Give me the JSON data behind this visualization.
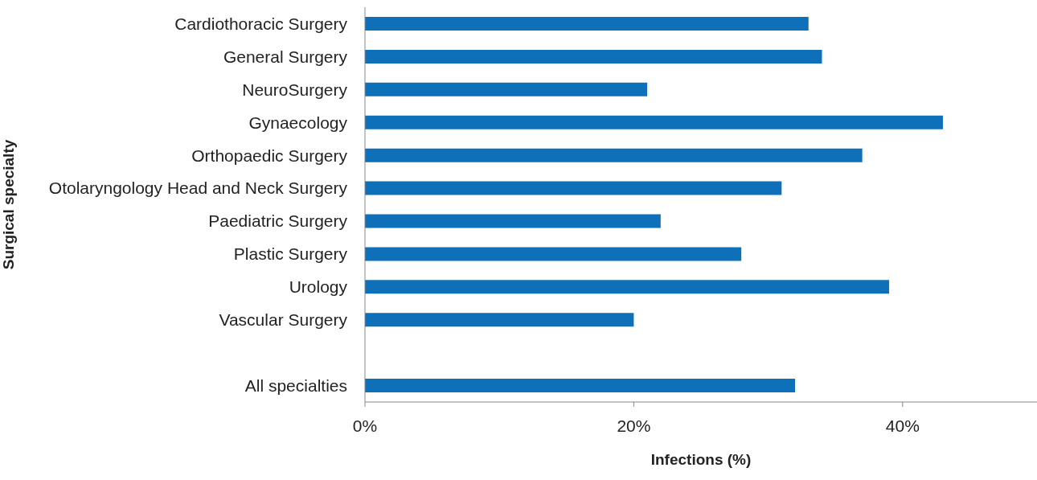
{
  "chart_data": {
    "type": "bar",
    "orientation": "horizontal",
    "xlabel": "Infections (%)",
    "ylabel": "Surgical specialty",
    "categories": [
      "Cardiothoracic Surgery",
      "General Surgery",
      "NeuroSurgery",
      "Gynaecology",
      "Orthopaedic Surgery",
      "Otolaryngology Head and Neck Surgery",
      "Paediatric Surgery",
      "Plastic Surgery",
      "Urology",
      "Vascular Surgery",
      null,
      "All specialties"
    ],
    "values": [
      33,
      34,
      21,
      43,
      37,
      31,
      22,
      28,
      39,
      20,
      null,
      32
    ],
    "color": "#0e70b8",
    "xlim": [
      0,
      50
    ],
    "xticks": [
      {
        "value": 0,
        "label": "0%"
      },
      {
        "value": 20,
        "label": "20%"
      },
      {
        "value": 40,
        "label": "40%"
      }
    ],
    "grid": false,
    "legend": false
  }
}
